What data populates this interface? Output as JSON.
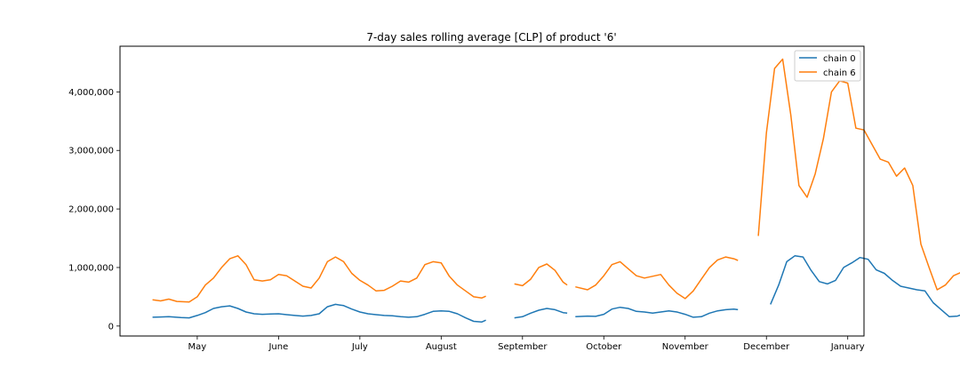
{
  "chart_data": {
    "type": "line",
    "title": "7-day sales rolling average [CLP] of product '6'",
    "xlabel": "",
    "ylabel": "",
    "x_tick_labels": [
      "May",
      "June",
      "July",
      "August",
      "September",
      "October",
      "November",
      "December",
      "January"
    ],
    "y_ticks": [
      0,
      1000000,
      2000000,
      3000000,
      4000000
    ],
    "y_tick_labels": [
      "0",
      "1,000,000",
      "2,000,000",
      "3,000,000",
      "4,000,000"
    ],
    "ylim": [
      -170000,
      4780000
    ],
    "xlim_month_index": [
      -0.95,
      8.2
    ],
    "legend": {
      "placement": "top-right"
    },
    "grid": false,
    "series": [
      {
        "name": "chain 0",
        "color": "#1f77b4",
        "segments": [
          [
            [
              -0.55,
              150000
            ],
            [
              -0.45,
              155000
            ],
            [
              -0.35,
              160000
            ],
            [
              -0.2,
              145000
            ],
            [
              -0.1,
              140000
            ],
            [
              0.0,
              180000
            ],
            [
              0.1,
              230000
            ],
            [
              0.2,
              300000
            ],
            [
              0.3,
              330000
            ],
            [
              0.4,
              345000
            ],
            [
              0.5,
              300000
            ],
            [
              0.6,
              240000
            ],
            [
              0.7,
              210000
            ],
            [
              0.8,
              200000
            ],
            [
              0.9,
              205000
            ],
            [
              1.0,
              210000
            ],
            [
              1.1,
              195000
            ],
            [
              1.2,
              180000
            ],
            [
              1.3,
              170000
            ],
            [
              1.4,
              180000
            ],
            [
              1.5,
              210000
            ],
            [
              1.6,
              330000
            ],
            [
              1.7,
              370000
            ],
            [
              1.8,
              350000
            ],
            [
              1.9,
              290000
            ],
            [
              2.0,
              240000
            ],
            [
              2.1,
              210000
            ],
            [
              2.2,
              195000
            ],
            [
              2.3,
              180000
            ],
            [
              2.4,
              175000
            ],
            [
              2.5,
              160000
            ],
            [
              2.6,
              150000
            ],
            [
              2.7,
              160000
            ],
            [
              2.8,
              200000
            ],
            [
              2.9,
              250000
            ],
            [
              3.0,
              260000
            ],
            [
              3.1,
              250000
            ],
            [
              3.2,
              210000
            ],
            [
              3.3,
              140000
            ],
            [
              3.4,
              80000
            ],
            [
              3.5,
              70000
            ],
            [
              3.55,
              100000
            ]
          ],
          [
            [
              3.9,
              140000
            ],
            [
              4.0,
              160000
            ],
            [
              4.1,
              220000
            ],
            [
              4.2,
              270000
            ],
            [
              4.3,
              300000
            ],
            [
              4.4,
              280000
            ],
            [
              4.5,
              230000
            ],
            [
              4.55,
              220000
            ]
          ],
          [
            [
              4.65,
              160000
            ],
            [
              4.8,
              170000
            ],
            [
              4.9,
              165000
            ],
            [
              5.0,
              200000
            ],
            [
              5.1,
              290000
            ],
            [
              5.2,
              320000
            ],
            [
              5.3,
              300000
            ],
            [
              5.4,
              250000
            ],
            [
              5.5,
              240000
            ],
            [
              5.6,
              220000
            ],
            [
              5.7,
              240000
            ],
            [
              5.8,
              260000
            ],
            [
              5.9,
              240000
            ],
            [
              6.0,
              200000
            ],
            [
              6.1,
              150000
            ],
            [
              6.2,
              160000
            ],
            [
              6.3,
              220000
            ],
            [
              6.4,
              260000
            ],
            [
              6.5,
              280000
            ],
            [
              6.6,
              290000
            ],
            [
              6.65,
              280000
            ]
          ],
          [
            [
              7.05,
              370000
            ],
            [
              7.15,
              700000
            ],
            [
              7.25,
              1100000
            ],
            [
              7.35,
              1200000
            ],
            [
              7.45,
              1180000
            ],
            [
              7.55,
              950000
            ],
            [
              7.65,
              760000
            ],
            [
              7.75,
              720000
            ],
            [
              7.85,
              780000
            ],
            [
              7.95,
              1000000
            ],
            [
              8.05,
              1080000
            ],
            [
              8.15,
              1170000
            ],
            [
              8.25,
              1140000
            ],
            [
              8.35,
              960000
            ],
            [
              8.45,
              900000
            ],
            [
              8.55,
              780000
            ],
            [
              8.65,
              680000
            ],
            [
              8.75,
              650000
            ],
            [
              8.85,
              620000
            ],
            [
              8.95,
              600000
            ],
            [
              9.05,
              400000
            ],
            [
              9.15,
              280000
            ],
            [
              9.25,
              160000
            ],
            [
              9.35,
              170000
            ],
            [
              9.45,
              220000
            ],
            [
              9.55,
              240000
            ],
            [
              9.65,
              250000
            ],
            [
              9.75,
              230000
            ],
            [
              9.85,
              200000
            ],
            [
              9.95,
              180000
            ],
            [
              10.05,
              165000
            ],
            [
              10.15,
              155000
            ],
            [
              10.25,
              160000
            ],
            [
              10.35,
              170000
            ],
            [
              10.45,
              175000
            ],
            [
              10.55,
              165000
            ],
            [
              10.65,
              160000
            ],
            [
              10.75,
              175000
            ],
            [
              10.85,
              210000
            ],
            [
              10.95,
              220000
            ]
          ]
        ]
      },
      {
        "name": "chain 6",
        "color": "#ff7f0e",
        "segments": [
          [
            [
              -0.55,
              450000
            ],
            [
              -0.45,
              430000
            ],
            [
              -0.35,
              460000
            ],
            [
              -0.25,
              420000
            ],
            [
              -0.1,
              410000
            ],
            [
              0.0,
              500000
            ],
            [
              0.1,
              700000
            ],
            [
              0.2,
              820000
            ],
            [
              0.3,
              1000000
            ],
            [
              0.4,
              1150000
            ],
            [
              0.5,
              1200000
            ],
            [
              0.6,
              1050000
            ],
            [
              0.7,
              790000
            ],
            [
              0.8,
              770000
            ],
            [
              0.9,
              790000
            ],
            [
              1.0,
              880000
            ],
            [
              1.1,
              860000
            ],
            [
              1.2,
              770000
            ],
            [
              1.3,
              680000
            ],
            [
              1.4,
              650000
            ],
            [
              1.5,
              820000
            ],
            [
              1.6,
              1100000
            ],
            [
              1.7,
              1180000
            ],
            [
              1.8,
              1100000
            ],
            [
              1.9,
              900000
            ],
            [
              2.0,
              780000
            ],
            [
              2.1,
              700000
            ],
            [
              2.2,
              600000
            ],
            [
              2.3,
              610000
            ],
            [
              2.4,
              680000
            ],
            [
              2.5,
              770000
            ],
            [
              2.6,
              750000
            ],
            [
              2.7,
              820000
            ],
            [
              2.8,
              1050000
            ],
            [
              2.9,
              1100000
            ],
            [
              3.0,
              1080000
            ],
            [
              3.1,
              850000
            ],
            [
              3.2,
              700000
            ],
            [
              3.3,
              600000
            ],
            [
              3.4,
              500000
            ],
            [
              3.5,
              480000
            ],
            [
              3.55,
              510000
            ]
          ],
          [
            [
              3.9,
              720000
            ],
            [
              4.0,
              690000
            ],
            [
              4.1,
              800000
            ],
            [
              4.2,
              1000000
            ],
            [
              4.3,
              1060000
            ],
            [
              4.4,
              950000
            ],
            [
              4.5,
              750000
            ],
            [
              4.55,
              700000
            ]
          ],
          [
            [
              4.65,
              670000
            ],
            [
              4.8,
              620000
            ],
            [
              4.9,
              700000
            ],
            [
              5.0,
              860000
            ],
            [
              5.1,
              1050000
            ],
            [
              5.2,
              1100000
            ],
            [
              5.3,
              980000
            ],
            [
              5.4,
              860000
            ],
            [
              5.5,
              820000
            ],
            [
              5.6,
              850000
            ],
            [
              5.7,
              880000
            ],
            [
              5.8,
              700000
            ],
            [
              5.9,
              560000
            ],
            [
              6.0,
              470000
            ],
            [
              6.1,
              600000
            ],
            [
              6.2,
              800000
            ],
            [
              6.3,
              1000000
            ],
            [
              6.4,
              1130000
            ],
            [
              6.5,
              1180000
            ],
            [
              6.6,
              1150000
            ],
            [
              6.65,
              1120000
            ]
          ],
          [
            [
              6.9,
              1540000
            ],
            [
              7.0,
              3300000
            ],
            [
              7.1,
              4400000
            ],
            [
              7.2,
              4560000
            ],
            [
              7.3,
              3600000
            ],
            [
              7.4,
              2400000
            ],
            [
              7.5,
              2200000
            ],
            [
              7.6,
              2600000
            ],
            [
              7.7,
              3200000
            ],
            [
              7.8,
              4000000
            ],
            [
              7.9,
              4190000
            ],
            [
              8.0,
              4150000
            ],
            [
              8.1,
              3380000
            ],
            [
              8.2,
              3350000
            ],
            [
              8.3,
              3100000
            ],
            [
              8.4,
              2850000
            ],
            [
              8.5,
              2800000
            ],
            [
              8.6,
              2560000
            ],
            [
              8.7,
              2700000
            ],
            [
              8.8,
              2400000
            ],
            [
              8.9,
              1400000
            ],
            [
              9.0,
              1000000
            ],
            [
              9.1,
              620000
            ],
            [
              9.2,
              700000
            ],
            [
              9.3,
              860000
            ],
            [
              9.4,
              920000
            ],
            [
              9.5,
              950000
            ],
            [
              9.6,
              880000
            ],
            [
              9.7,
              750000
            ],
            [
              9.8,
              720000
            ],
            [
              9.9,
              680000
            ],
            [
              10.0,
              660000
            ],
            [
              10.1,
              650000
            ],
            [
              10.2,
              660000
            ],
            [
              10.3,
              700000
            ],
            [
              10.4,
              760000
            ],
            [
              10.5,
              740000
            ],
            [
              10.6,
              650000
            ],
            [
              10.7,
              660000
            ],
            [
              10.8,
              800000
            ],
            [
              10.9,
              900000
            ],
            [
              10.95,
              920000
            ]
          ]
        ]
      }
    ]
  }
}
